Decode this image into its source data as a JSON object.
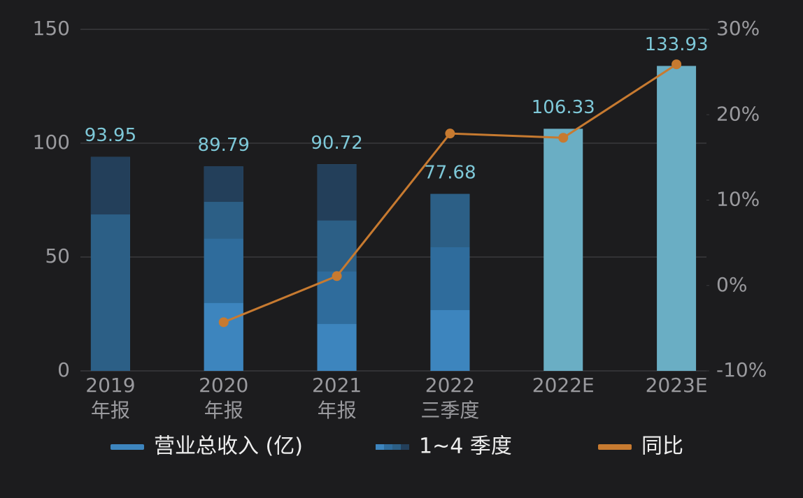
{
  "chart_data": {
    "type": "bar",
    "categories": [
      [
        "2019",
        "年报"
      ],
      [
        "2020",
        "年报"
      ],
      [
        "2021",
        "年报"
      ],
      [
        "2022",
        "三季度"
      ],
      [
        "2022E"
      ],
      [
        "2023E"
      ]
    ],
    "series": [
      {
        "name": "营业总收入 (亿)",
        "color": "#3d85be",
        "values": [
          93.95,
          89.79,
          90.72,
          77.68,
          106.33,
          133.93
        ],
        "colors": [
          "#3d85be",
          "#3d85be",
          "#3d85be",
          "#3d85be",
          "#6aaec4",
          "#6aaec4"
        ]
      },
      {
        "name": "1~4 季度",
        "type": "stacked",
        "colors": [
          "#3d85be",
          "#2f6c9c",
          "#2c5f86",
          "#233f5a"
        ],
        "segments": [
          [
            68.7,
            25.25
          ],
          [
            29.8,
            28.2,
            16.2,
            15.6
          ],
          [
            20.6,
            23.0,
            22.4,
            24.7
          ],
          [
            26.7,
            27.6,
            23.4
          ],
          [],
          []
        ],
        "segment_colors": [
          [
            "#2c5f86",
            "#233f5a"
          ],
          [
            "#3d85be",
            "#2f6c9c",
            "#2c5f86",
            "#233f5a"
          ],
          [
            "#3d85be",
            "#2f6c9c",
            "#2c5f86",
            "#233f5a"
          ],
          [
            "#3d85be",
            "#2f6c9c",
            "#2c5f86"
          ],
          [],
          []
        ]
      },
      {
        "name": "同比",
        "type": "line",
        "axis": "y2",
        "color": "#c77a30",
        "values": [
          null,
          -4.3,
          1.1,
          17.8,
          17.3,
          25.9
        ]
      }
    ],
    "ylim": [
      0,
      150
    ],
    "yticks": [
      0,
      50,
      100,
      150
    ],
    "y2lim": [
      -10,
      30
    ],
    "y2ticks": [
      {
        "value": -10,
        "label": "-10%"
      },
      {
        "value": 0,
        "label": "0%"
      },
      {
        "value": 10,
        "label": "10%"
      },
      {
        "value": 20,
        "label": "20%"
      },
      {
        "value": 30,
        "label": "30%"
      }
    ],
    "grid": true
  }
}
